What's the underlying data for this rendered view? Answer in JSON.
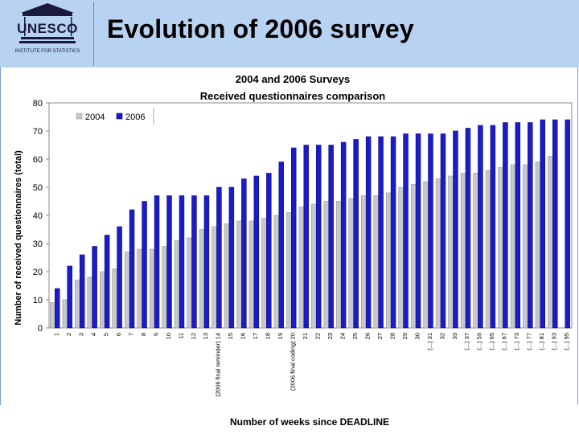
{
  "slide": {
    "title": "Evolution of 2006 survey"
  },
  "logo": {
    "org": "UNESCO",
    "subtitle": "INSTITUTE FOR STATISTICS"
  },
  "chart_data": {
    "type": "bar",
    "title": "2004 and 2006 Surveys",
    "subtitle": "Received questionnaires comparison",
    "xlabel": "Number of weeks since DEADLINE",
    "ylabel": "Number of received questionnaires (total)",
    "ylim": [
      0,
      80
    ],
    "yticks": [
      0,
      10,
      20,
      30,
      40,
      50,
      60,
      70,
      80
    ],
    "legend_position": "top-left",
    "categories": [
      "1",
      "2",
      "3",
      "4",
      "5",
      "6",
      "7",
      "8",
      "9",
      "10",
      "11",
      "12",
      "13",
      "(2006 final reminder) 14",
      "15",
      "16",
      "17",
      "18",
      "19",
      "(2006 final coding) 20",
      "21",
      "22",
      "23",
      "24",
      "25",
      "26",
      "27",
      "28",
      "29",
      "30",
      "(...) 31",
      "32",
      "33",
      "(...) 37",
      "(...) 59",
      "(...) 65",
      "(...) 67",
      "(...) 73",
      "(...) 77",
      "(...) 81",
      "(...) 93",
      "(...) 95"
    ],
    "series": [
      {
        "name": "2004",
        "color": "#c8c8c8",
        "values": [
          9,
          10,
          17,
          18,
          20,
          21,
          27,
          28,
          28,
          29,
          31,
          32,
          35,
          36,
          37,
          38,
          38,
          39,
          40,
          41,
          43,
          44,
          45,
          45,
          46,
          47,
          47,
          48,
          50,
          51,
          52,
          53,
          54,
          55,
          55,
          56,
          57,
          58,
          58,
          59,
          61,
          null
        ]
      },
      {
        "name": "2006",
        "color": "#1b1bc8",
        "values": [
          14,
          22,
          26,
          29,
          33,
          36,
          42,
          45,
          47,
          47,
          47,
          47,
          47,
          50,
          50,
          53,
          54,
          55,
          59,
          64,
          65,
          65,
          65,
          66,
          67,
          68,
          68,
          68,
          69,
          69,
          69,
          69,
          70,
          71,
          72,
          72,
          73,
          73,
          73,
          74,
          74,
          74
        ]
      }
    ]
  }
}
